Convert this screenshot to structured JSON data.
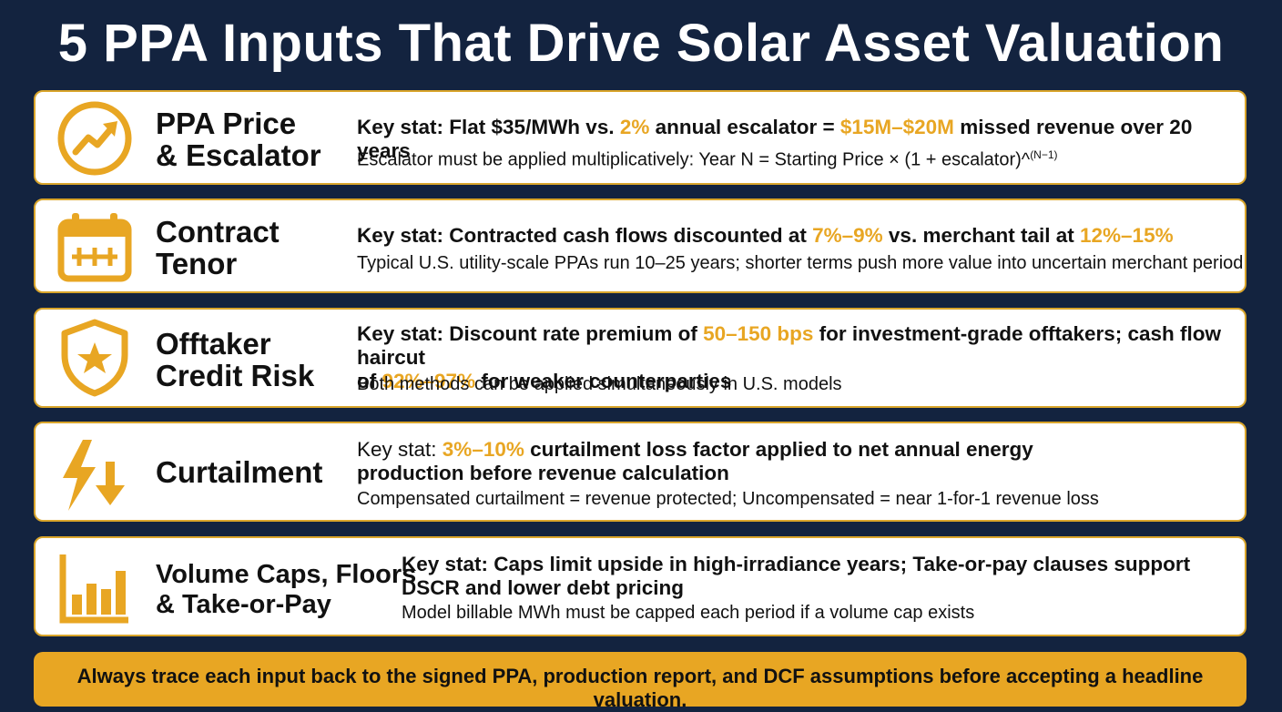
{
  "title": "5 PPA Inputs That Drive Solar Asset Valuation",
  "colors": {
    "background": "#13233f",
    "accent": "#e8a623",
    "card": "#ffffff"
  },
  "cards": [
    {
      "icon": "trending-up-icon",
      "label_line1": "PPA Price",
      "label_line2": "& Escalator",
      "stat": [
        "Key stat: Flat $35/MWh vs. ",
        "2%",
        " annual escalator = ",
        "$15M–$20M",
        " missed revenue over 20 years"
      ],
      "note": "Escalator must be applied multiplicatively: Year N = Starting Price × (1 + escalator)^",
      "note_sup": "(N−1)"
    },
    {
      "icon": "calendar-icon",
      "label_line1": "Contract",
      "label_line2": "Tenor",
      "stat": [
        "Key stat: Contracted cash flows discounted at ",
        "7%–9%",
        " vs. merchant tail at ",
        "12%–15%"
      ],
      "note": "Typical U.S. utility-scale PPAs run 10–25 years; shorter terms push more value into uncertain merchant period"
    },
    {
      "icon": "shield-star-icon",
      "label_line1": "Offtaker",
      "label_line2": "Credit Risk",
      "stat_line1": [
        "Key stat: Discount rate premium of ",
        "50–150 bps",
        " for investment-grade offtakers; cash flow haircut"
      ],
      "stat_line2": [
        "of ",
        "92%–97%",
        " for weaker counterparties"
      ],
      "note": "Both methods can be applied simultaneously in U.S. models"
    },
    {
      "icon": "lightning-down-arrow-icon",
      "label_line1": "Curtailment",
      "stat_line1": [
        "Key stat: ",
        "3%–10%",
        " curtailment loss factor applied to net annual energy"
      ],
      "stat_line2": "production before revenue calculation",
      "note": "Compensated curtailment = revenue protected; Uncompensated = near 1-for-1 revenue loss"
    },
    {
      "icon": "bar-chart-icon",
      "label_line1": "Volume Caps, Floors",
      "label_line2": "& Take-or-Pay",
      "stat_line1": "Key stat: Caps limit upside in high-irradiance years; Take-or-pay clauses support",
      "stat_line2": "DSCR and lower debt pricing",
      "note": "Model billable MWh must be capped each period if a volume cap exists"
    }
  ],
  "banner": "Always trace each input back to the signed PPA, production report, and DCF assumptions before accepting a headline valuation."
}
